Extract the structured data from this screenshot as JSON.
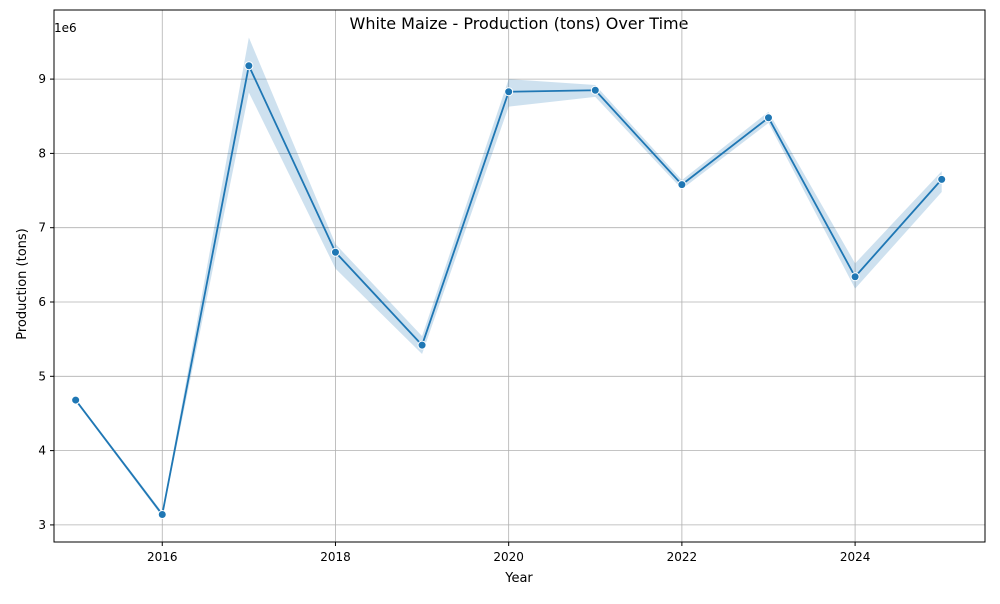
{
  "chart_data": {
    "type": "line",
    "title": "White Maize - Production (tons) Over Time",
    "xlabel": "Year",
    "ylabel": "Production (tons)",
    "y_offset_label": "1e6",
    "xlim": [
      2014.75,
      2025.5
    ],
    "ylim": [
      2770000,
      9930000
    ],
    "x_ticks": [
      2016,
      2018,
      2020,
      2022,
      2024
    ],
    "y_ticks": [
      3000000,
      4000000,
      5000000,
      6000000,
      7000000,
      8000000,
      9000000
    ],
    "y_tick_labels": [
      "3",
      "4",
      "5",
      "6",
      "7",
      "8",
      "9"
    ],
    "grid": true,
    "legend": "none",
    "series": [
      {
        "x": [
          2015,
          2016,
          2017,
          2018,
          2019,
          2020,
          2021,
          2022,
          2023,
          2024,
          2025
        ],
        "values": [
          4680000,
          3140000,
          9180000,
          6670000,
          5420000,
          8830000,
          8850000,
          7580000,
          8480000,
          6340000,
          7650000
        ],
        "ci_low": [
          4660000,
          3110000,
          8820000,
          6450000,
          5300000,
          8630000,
          8760000,
          7520000,
          8410000,
          6180000,
          7480000
        ],
        "ci_high": [
          4700000,
          3170000,
          9560000,
          6780000,
          5540000,
          9000000,
          8920000,
          7640000,
          8560000,
          6520000,
          7760000
        ],
        "color": "#1f77b4",
        "band_color": "#1f77b4"
      }
    ]
  }
}
